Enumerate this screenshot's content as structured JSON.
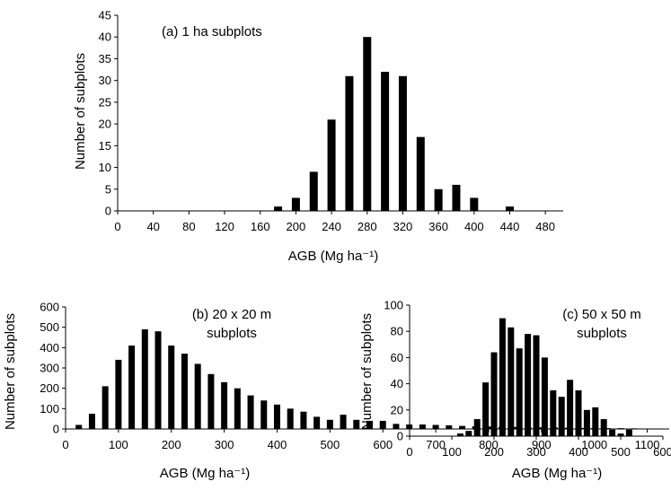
{
  "chart_data": [
    {
      "type": "bar",
      "title": "(a) 1 ha subplots",
      "xlabel": "AGB (Mg ha⁻¹)",
      "ylabel": "Number of subplots",
      "xlim": [
        0,
        500
      ],
      "ylim": [
        0,
        45
      ],
      "x_ticks": [
        0,
        40,
        80,
        120,
        160,
        200,
        240,
        280,
        320,
        360,
        400,
        440,
        480
      ],
      "y_ticks": [
        0,
        5,
        10,
        15,
        20,
        25,
        30,
        35,
        40,
        45
      ],
      "grid": false,
      "x": [
        180,
        200,
        220,
        240,
        260,
        280,
        300,
        320,
        340,
        360,
        380,
        400,
        440
      ],
      "values": [
        1,
        3,
        9,
        21,
        31,
        40,
        32,
        31,
        17,
        5,
        6,
        3,
        1
      ]
    },
    {
      "type": "bar",
      "title": "(b) 20 x 20 m",
      "subtitle": "subplots",
      "xlabel": "AGB (Mg ha⁻¹)",
      "ylabel": "Number of subplots",
      "xlim": [
        0,
        1150
      ],
      "ylim": [
        0,
        600
      ],
      "x_ticks": [
        0,
        100,
        200,
        300,
        400,
        500,
        600,
        700,
        800,
        900,
        1000,
        1100
      ],
      "y_ticks": [
        0,
        100,
        200,
        300,
        400,
        500,
        600
      ],
      "grid": false,
      "x": [
        25,
        50,
        75,
        100,
        125,
        150,
        175,
        200,
        225,
        250,
        275,
        300,
        325,
        350,
        375,
        400,
        425,
        450,
        475,
        500,
        525,
        550,
        575,
        600,
        625,
        650,
        675,
        700,
        725,
        750,
        775,
        800,
        825,
        850,
        875,
        900,
        925,
        950,
        975,
        1000,
        1025,
        1050,
        1075,
        1100
      ],
      "values": [
        20,
        75,
        210,
        340,
        410,
        490,
        480,
        410,
        370,
        320,
        270,
        230,
        200,
        165,
        140,
        120,
        100,
        85,
        60,
        45,
        70,
        45,
        40,
        40,
        25,
        22,
        22,
        20,
        18,
        15,
        13,
        12,
        11,
        10,
        9,
        8,
        7,
        6,
        5,
        5,
        4,
        4,
        3,
        2
      ]
    },
    {
      "type": "bar",
      "title": "(c) 50 x 50 m",
      "subtitle": "subplots",
      "xlabel": "AGB  (Mg ha⁻¹)",
      "ylabel": "Number of subplots",
      "xlim": [
        0,
        600
      ],
      "ylim": [
        0,
        100
      ],
      "x_ticks": [
        0,
        100,
        200,
        300,
        400,
        500,
        600
      ],
      "y_ticks": [
        0,
        20,
        40,
        60,
        80,
        100
      ],
      "grid": false,
      "x": [
        120,
        140,
        160,
        180,
        200,
        220,
        240,
        260,
        280,
        300,
        320,
        340,
        360,
        380,
        400,
        420,
        440,
        460,
        480,
        500,
        520
      ],
      "values": [
        2,
        4,
        13,
        41,
        64,
        90,
        83,
        67,
        78,
        77,
        60,
        35,
        30,
        43,
        35,
        20,
        22,
        13,
        5,
        2,
        5
      ]
    }
  ]
}
